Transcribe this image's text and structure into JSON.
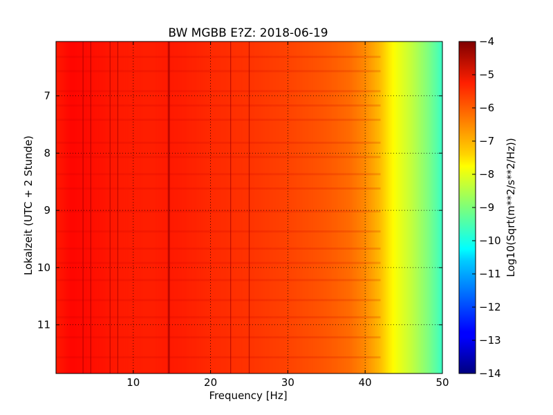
{
  "chart_data": {
    "type": "heatmap",
    "title": "BW MGBB E?Z: 2018-06-19",
    "xlabel": "Frequency [Hz]",
    "ylabel": "Lokalzeit (UTC + 2 Stunde)",
    "xlim": [
      0,
      50
    ],
    "ylim": [
      6.05,
      11.85
    ],
    "y_inverted": true,
    "x_ticks": [
      10,
      20,
      30,
      40,
      50
    ],
    "y_ticks": [
      7,
      8,
      9,
      10,
      11
    ],
    "grid": true,
    "colormap": "jet",
    "colorbar": {
      "label": "Log10(Sqrt(m**2/s**2/Hz))",
      "min": -14,
      "max": -4,
      "ticks": [
        -4,
        -5,
        -6,
        -7,
        -8,
        -9,
        -10,
        -11,
        -12,
        -13,
        -14
      ]
    },
    "spectrum_profile": {
      "frequency_hz": [
        0,
        2,
        5,
        8,
        12,
        15,
        20,
        25,
        30,
        35,
        38,
        40,
        41,
        42,
        43,
        44,
        45,
        46,
        47,
        48,
        49,
        50
      ],
      "log_amplitude": [
        -5.5,
        -5.3,
        -5.4,
        -5.5,
        -5.55,
        -5.5,
        -5.65,
        -5.75,
        -5.9,
        -6.1,
        -6.3,
        -6.6,
        -6.85,
        -7.1,
        -7.5,
        -7.85,
        -8.1,
        -8.35,
        -8.65,
        -8.95,
        -9.3,
        -9.7
      ]
    },
    "dark_frequency_lines_hz": [
      3.5,
      4.5,
      7.0,
      8.0,
      14.6,
      22.6,
      25.0
    ],
    "darker_time_bands": [
      6.3,
      6.55,
      6.9,
      7.15,
      7.4,
      7.8,
      8.05,
      8.35,
      8.6,
      9.0,
      9.35,
      9.65,
      9.9,
      10.2,
      10.55,
      10.85,
      11.2,
      11.55
    ]
  }
}
